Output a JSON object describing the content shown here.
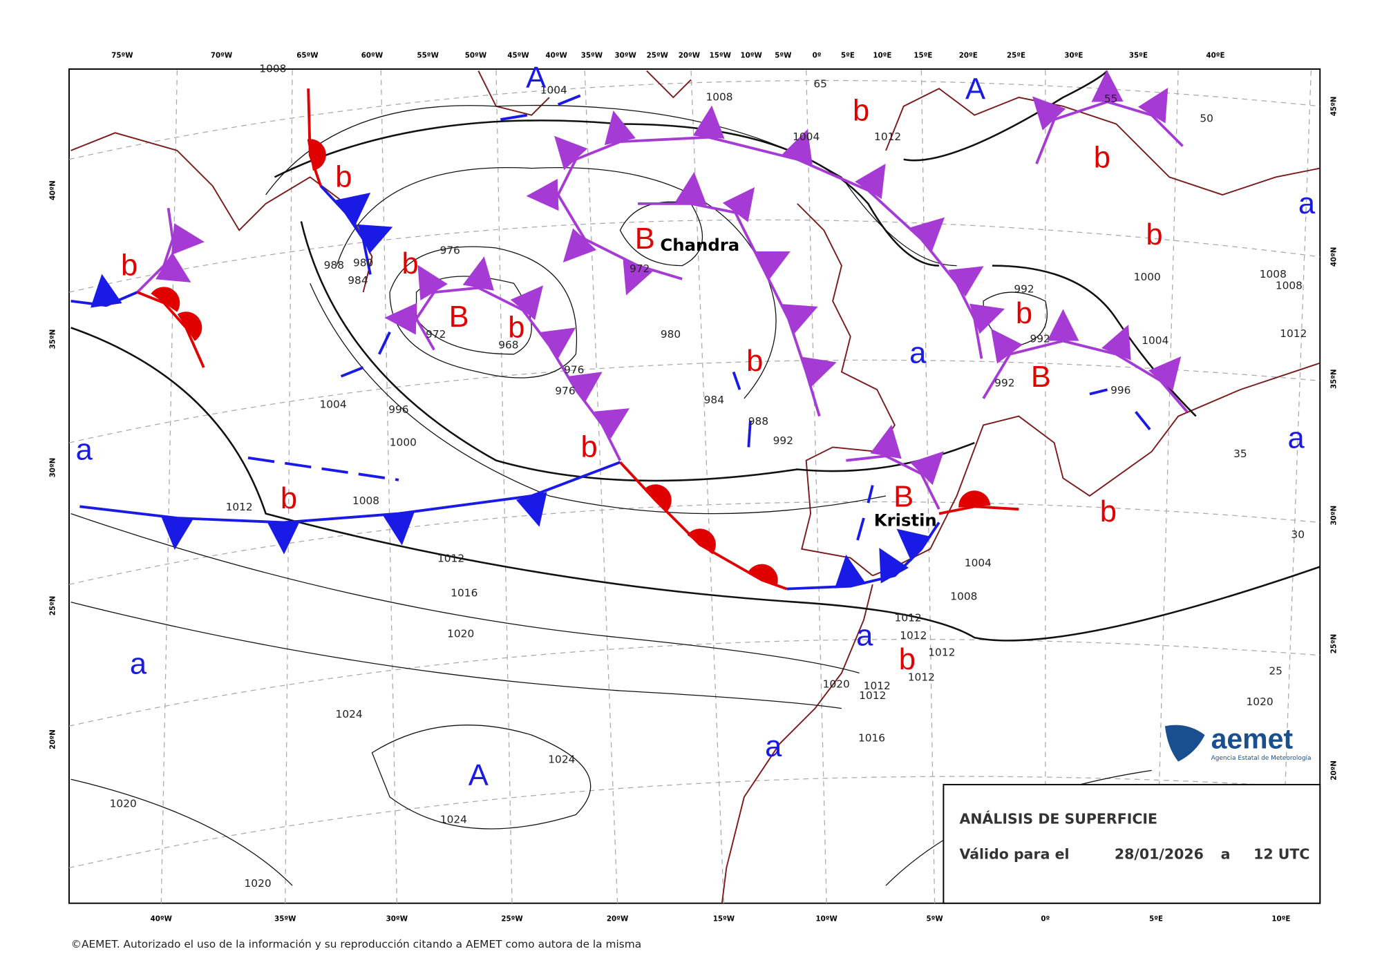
{
  "map": {
    "top_longitudes": [
      "75ºW",
      "70ºW",
      "65ºW",
      "60ºW",
      "55ºW",
      "50ºW",
      "45ºW",
      "40ºW",
      "35ºW",
      "30ºW",
      "25ºW",
      "20ºW",
      "15ºW",
      "10ºW",
      "5ºW",
      "0º",
      "5ºE",
      "10ºE",
      "15ºE",
      "20ºE",
      "25ºE",
      "30ºE",
      "35ºE",
      "40ºE"
    ],
    "bottom_longitudes": [
      "40ºW",
      "35ºW",
      "30ºW",
      "25ºW",
      "20ºW",
      "15ºW",
      "10ºW",
      "5ºW",
      "0º",
      "5ºE",
      "10ºE"
    ],
    "left_latitudes": [
      "40ºN",
      "35ºN",
      "30ºN",
      "25ºN",
      "20ºN"
    ],
    "right_latitudes": [
      "45ºN",
      "40ºN",
      "35ºN",
      "30ºN",
      "25ºN",
      "20ºN"
    ],
    "isobar_labels": [
      "1008",
      "1004",
      "1008",
      "1004",
      "65",
      "976",
      "988",
      "980",
      "984",
      "972",
      "968",
      "976",
      "976",
      "972",
      "980",
      "984",
      "988",
      "992",
      "1004",
      "996",
      "1000",
      "1008",
      "1012",
      "1012",
      "1016",
      "1020",
      "1024",
      "1024",
      "1024",
      "1020",
      "1020",
      "992",
      "992",
      "992",
      "996",
      "1000",
      "1004",
      "1008",
      "1008",
      "1012",
      "1004",
      "1008",
      "1012",
      "1012",
      "1012",
      "1012",
      "1020",
      "1012",
      "1012",
      "1016",
      "1020",
      "55",
      "50",
      "35",
      "30",
      "25",
      "1012"
    ],
    "pressure_centers": [
      {
        "label": "A",
        "color": "#1a1ae6"
      },
      {
        "label": "A",
        "color": "#1a1ae6"
      },
      {
        "label": "B",
        "color": "#e00000"
      },
      {
        "label": "b",
        "color": "#e00000"
      },
      {
        "label": "b",
        "color": "#e00000"
      },
      {
        "label": "b",
        "color": "#e00000"
      },
      {
        "label": "B",
        "color": "#e00000"
      },
      {
        "label": "b",
        "color": "#e00000"
      },
      {
        "label": "b",
        "color": "#e00000"
      },
      {
        "label": "b",
        "color": "#e00000"
      },
      {
        "label": "b",
        "color": "#e00000"
      },
      {
        "label": "b",
        "color": "#e00000"
      },
      {
        "label": "b",
        "color": "#e00000"
      },
      {
        "label": "b",
        "color": "#e00000"
      },
      {
        "label": "b",
        "color": "#e00000"
      },
      {
        "label": "B",
        "color": "#e00000"
      },
      {
        "label": "B",
        "color": "#e00000"
      },
      {
        "label": "b",
        "color": "#e00000"
      },
      {
        "label": "b",
        "color": "#e00000"
      },
      {
        "label": "a",
        "color": "#1a1ae6"
      },
      {
        "label": "a",
        "color": "#1a1ae6"
      },
      {
        "label": "a",
        "color": "#1a1ae6"
      },
      {
        "label": "a",
        "color": "#1a1ae6"
      },
      {
        "label": "a",
        "color": "#1a1ae6"
      },
      {
        "label": "a",
        "color": "#1a1ae6"
      },
      {
        "label": "a",
        "color": "#1a1ae6"
      },
      {
        "label": "A",
        "color": "#1a1ae6"
      }
    ],
    "storm_names": [
      "Chandra",
      "Kristin"
    ]
  },
  "info_box": {
    "title": "ANÁLISIS DE SUPERFICIE",
    "valid_label": "Válido para el",
    "date": "28/01/2026",
    "at": "a",
    "time": "12 UTC"
  },
  "logo": {
    "name": "aemet",
    "subtitle": "Agencia Estatal de Meteorología"
  },
  "footer": "©AEMET. Autorizado el uso de la información y su reproducción citando a AEMET como autora de la misma"
}
